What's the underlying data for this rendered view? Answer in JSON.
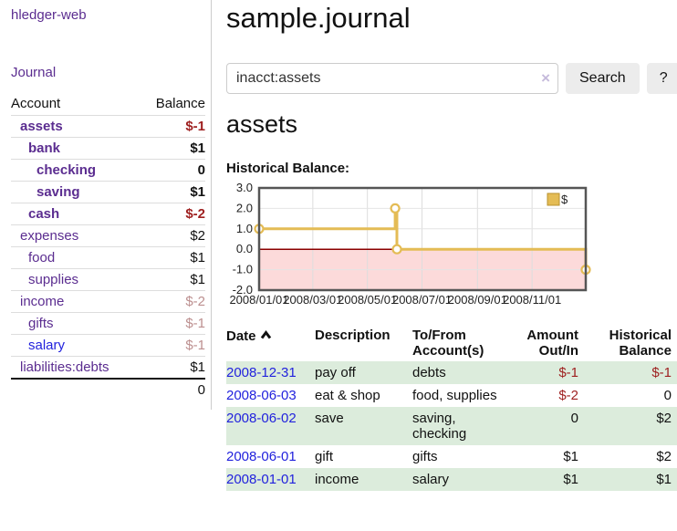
{
  "app": {
    "title": "hledger-web"
  },
  "sidebar": {
    "journal_link": "Journal",
    "headers": {
      "account": "Account",
      "balance": "Balance"
    },
    "rows": [
      {
        "name": "assets",
        "balance": "$-1"
      },
      {
        "name": "bank",
        "balance": "$1"
      },
      {
        "name": "checking",
        "balance": "0"
      },
      {
        "name": "saving",
        "balance": "$1"
      },
      {
        "name": "cash",
        "balance": "$-2"
      },
      {
        "name": "expenses",
        "balance": "$2"
      },
      {
        "name": "food",
        "balance": "$1"
      },
      {
        "name": "supplies",
        "balance": "$1"
      },
      {
        "name": "income",
        "balance": "$-2"
      },
      {
        "name": "gifts",
        "balance": "$-1"
      },
      {
        "name": "salary",
        "balance": "$-1"
      },
      {
        "name": "liabilities:debts",
        "balance": "$1"
      }
    ],
    "total": "0"
  },
  "main": {
    "title": "sample.journal",
    "search": {
      "value": "inacct:assets",
      "clear_icon": "×",
      "button": "Search",
      "help_button": "?"
    },
    "account_heading": "assets",
    "chart_label": "Historical Balance:"
  },
  "chart_data": {
    "type": "line",
    "step": true,
    "title": "Historical Balance",
    "series": [
      {
        "name": "$",
        "points": [
          [
            "2008-01-01",
            1.0
          ],
          [
            "2008-06-01",
            2.0
          ],
          [
            "2008-06-02",
            2.0
          ],
          [
            "2008-06-03",
            0.0
          ],
          [
            "2008-12-31",
            -1.0
          ]
        ]
      }
    ],
    "x_range": [
      "2008-01-01",
      "2008-12-31"
    ],
    "ylim": [
      -2.0,
      3.0
    ],
    "y_ticks": [
      3.0,
      2.0,
      1.0,
      0.0,
      -1.0,
      -2.0
    ],
    "x_ticks": [
      "2008/01/01",
      "2008/03/01",
      "2008/05/01",
      "2008/07/01",
      "2008/09/01",
      "2008/11/01"
    ],
    "legend": {
      "label": "$",
      "position": "top-right"
    },
    "grid": true,
    "colors": {
      "line": "#e4bc55",
      "negative_fill": "#fcdada",
      "zero_line": "#8b0000",
      "border": "#555",
      "grid": "#ddd"
    }
  },
  "register": {
    "headers": {
      "date": "Date",
      "description": "Description",
      "tofrom": "To/From Account(s)",
      "amount": "Amount Out/In",
      "balance": "Historical Balance"
    },
    "rows": [
      {
        "date": "2008-12-31",
        "description": "pay off",
        "tofrom": "debts",
        "amount": "$-1",
        "balance": "$-1"
      },
      {
        "date": "2008-06-03",
        "description": "eat & shop",
        "tofrom": "food, supplies",
        "amount": "$-2",
        "balance": "0"
      },
      {
        "date": "2008-06-02",
        "description": "save",
        "tofrom": "saving, checking",
        "amount": "0",
        "balance": "$2"
      },
      {
        "date": "2008-06-01",
        "description": "gift",
        "tofrom": "gifts",
        "amount": "$1",
        "balance": "$2"
      },
      {
        "date": "2008-01-01",
        "description": "income",
        "tofrom": "salary",
        "amount": "$1",
        "balance": "$1"
      }
    ]
  }
}
